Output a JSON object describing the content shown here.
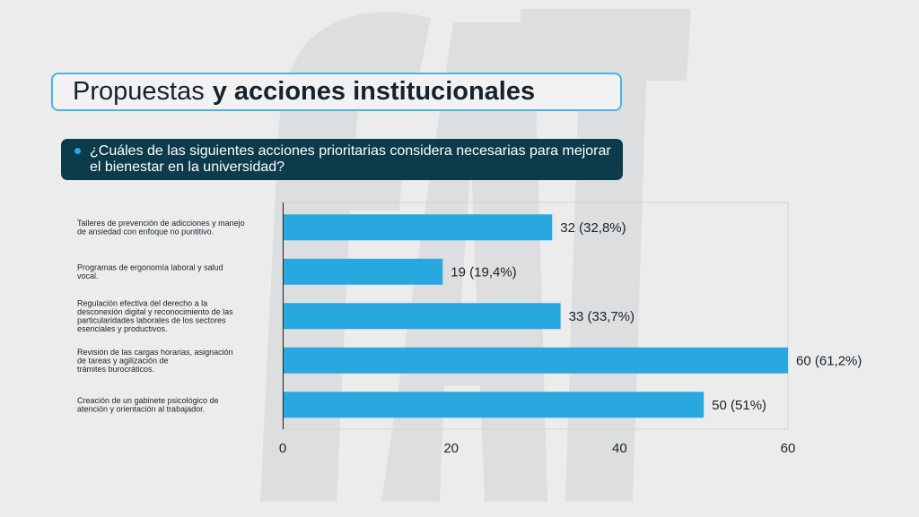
{
  "title": {
    "regular": "Propuestas",
    "bold": "y acciones institucionales"
  },
  "question": "¿Cuáles de las siguientes acciones prioritarias considera necesarias para mejorar el bienestar en la universidad?",
  "colors": {
    "bar": "#29a8e0",
    "question_bg": "#0c3b4b",
    "title_border": "#4ab3e6",
    "watermark": "#dcdedf"
  },
  "chart_data": {
    "type": "bar",
    "orientation": "horizontal",
    "categories": [
      [
        "Talleres de prevención de adicciones y manejo",
        "de ansiedad con enfoque no puntitivo."
      ],
      [
        "Programas de ergonomía laboral y salud",
        "vocal."
      ],
      [
        "Regulación efectiva del derecho a la",
        "desconexión digital y reconocimiento de las",
        "particularidades laborales de los sectores",
        "esenciales y productivos."
      ],
      [
        "Revisión de las cargas horarias, asignación",
        "de tareas y agilización de",
        "trámites burocráticos."
      ],
      [
        "Creación de un gabinete psicológico de",
        "atención y orientación al trabajador."
      ]
    ],
    "values": [
      32,
      19,
      33,
      60,
      50
    ],
    "data_labels": [
      "32 (32,8%)",
      "19 (19,4%)",
      "33 (33,7%)",
      "60 (61,2%)",
      "50 (51%)"
    ],
    "xlim": [
      0,
      60
    ],
    "xticks": [
      0,
      20,
      40,
      60
    ],
    "grid": false,
    "title": "",
    "xlabel": "",
    "ylabel": ""
  }
}
